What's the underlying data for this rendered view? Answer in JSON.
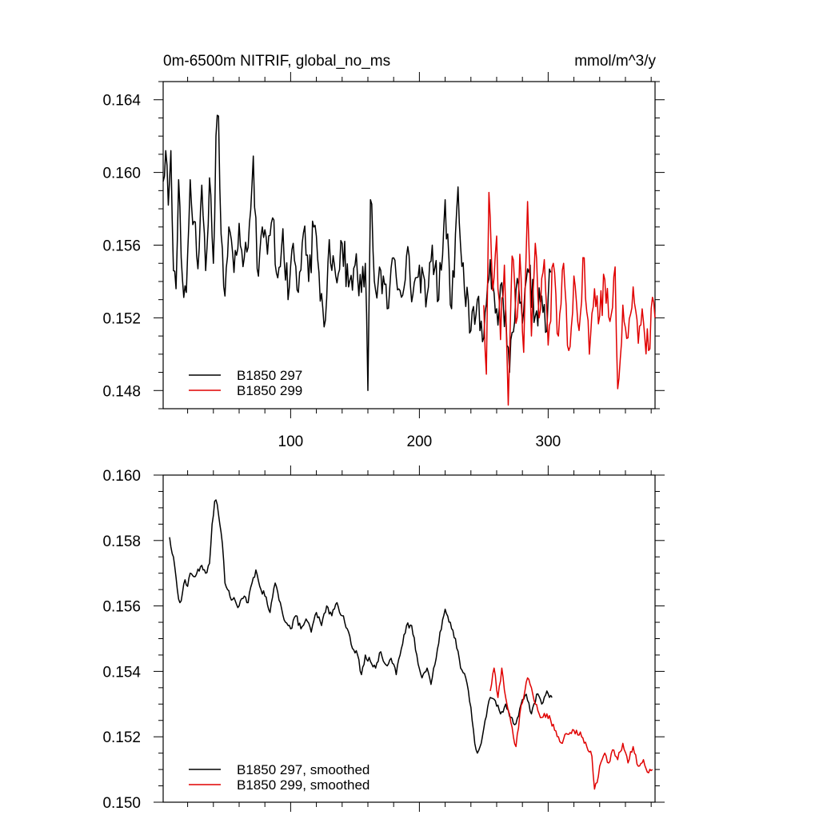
{
  "figure": {
    "title_left": "0m-6500m NITRIF, global_no_ms",
    "title_right": "mmol/m^3/y"
  },
  "colors": {
    "series_297": "#000000",
    "series_299": "#e00000",
    "axis": "#000000",
    "background": "#ffffff"
  },
  "chart_data": [
    {
      "type": "line",
      "panel": "top",
      "title": "0m-6500m NITRIF, global_no_ms",
      "units": "mmol/m^3/y",
      "xlim": [
        1,
        383
      ],
      "ylim": [
        0.147,
        0.165
      ],
      "x_ticks": [
        100,
        200,
        300
      ],
      "x_tick_labels": [
        "100",
        "200",
        "300"
      ],
      "y_ticks": [
        0.148,
        0.152,
        0.156,
        0.16,
        0.164
      ],
      "y_tick_labels": [
        "0.148",
        "0.152",
        "0.156",
        "0.160",
        "0.164"
      ],
      "legend_position": "bottom-left",
      "series": [
        {
          "name": "B1850 297",
          "color": "#000000",
          "x_start": 1,
          "x_step": 1,
          "anchors": [
            [
              1,
              0.1595
            ],
            [
              3,
              0.1612
            ],
            [
              5,
              0.1582
            ],
            [
              7,
              0.1612
            ],
            [
              9,
              0.1546
            ],
            [
              11,
              0.1536
            ],
            [
              13,
              0.1596
            ],
            [
              16,
              0.1541
            ],
            [
              19,
              0.1534
            ],
            [
              22,
              0.1596
            ],
            [
              25,
              0.1573
            ],
            [
              28,
              0.1547
            ],
            [
              31,
              0.1593
            ],
            [
              34,
              0.1546
            ],
            [
              37,
              0.1597
            ],
            [
              40,
              0.155
            ],
            [
              42,
              0.162
            ],
            [
              44,
              0.1631
            ],
            [
              46,
              0.1566
            ],
            [
              49,
              0.1532
            ],
            [
              52,
              0.157
            ],
            [
              56,
              0.1545
            ],
            [
              60,
              0.1572
            ],
            [
              64,
              0.1553
            ],
            [
              68,
              0.1572
            ],
            [
              71,
              0.1609
            ],
            [
              74,
              0.1547
            ],
            [
              78,
              0.157
            ],
            [
              82,
              0.1555
            ],
            [
              86,
              0.1575
            ],
            [
              90,
              0.1542
            ],
            [
              94,
              0.1569
            ],
            [
              98,
              0.153
            ],
            [
              102,
              0.1561
            ],
            [
              106,
              0.1534
            ],
            [
              110,
              0.1567
            ],
            [
              114,
              0.154
            ],
            [
              118,
              0.157
            ],
            [
              122,
              0.1545
            ],
            [
              126,
              0.1515
            ],
            [
              130,
              0.1563
            ],
            [
              135,
              0.1543
            ],
            [
              140,
              0.1561
            ],
            [
              145,
              0.1537
            ],
            [
              150,
              0.1549
            ],
            [
              155,
              0.1534
            ],
            [
              158,
              0.155
            ],
            [
              160,
              0.148
            ],
            [
              162,
              0.1585
            ],
            [
              166,
              0.1535
            ],
            [
              170,
              0.1546
            ],
            [
              175,
              0.1525
            ],
            [
              180,
              0.1553
            ],
            [
              185,
              0.1535
            ],
            [
              190,
              0.1554
            ],
            [
              195,
              0.1533
            ],
            [
              200,
              0.1549
            ],
            [
              205,
              0.1526
            ],
            [
              210,
              0.156
            ],
            [
              215,
              0.153
            ],
            [
              220,
              0.1585
            ],
            [
              225,
              0.1525
            ],
            [
              230,
              0.1592
            ],
            [
              235,
              0.1535
            ],
            [
              240,
              0.1513
            ],
            [
              245,
              0.153
            ],
            [
              250,
              0.1509
            ],
            [
              255,
              0.1552
            ],
            [
              260,
              0.1525
            ],
            [
              265,
              0.153
            ],
            [
              270,
              0.149
            ],
            [
              275,
              0.1535
            ],
            [
              280,
              0.1517
            ],
            [
              285,
              0.1545
            ],
            [
              290,
              0.1521
            ],
            [
              295,
              0.1532
            ],
            [
              298,
              0.1512
            ],
            [
              302,
              0.1545
            ]
          ]
        },
        {
          "name": "B1850 299",
          "color": "#e00000",
          "x_start": 250,
          "x_step": 1,
          "anchors": [
            [
              250,
              0.1527
            ],
            [
              252,
              0.1489
            ],
            [
              254,
              0.1589
            ],
            [
              257,
              0.1535
            ],
            [
              260,
              0.1565
            ],
            [
              263,
              0.1508
            ],
            [
              266,
              0.1549
            ],
            [
              269,
              0.1472
            ],
            [
              272,
              0.1554
            ],
            [
              275,
              0.1517
            ],
            [
              278,
              0.1555
            ],
            [
              281,
              0.1501
            ],
            [
              284,
              0.1584
            ],
            [
              287,
              0.151
            ],
            [
              290,
              0.1561
            ],
            [
              293,
              0.152
            ],
            [
              297,
              0.1552
            ],
            [
              300,
              0.1505
            ],
            [
              304,
              0.155
            ],
            [
              308,
              0.151
            ],
            [
              312,
              0.155
            ],
            [
              316,
              0.1502
            ],
            [
              320,
              0.1543
            ],
            [
              324,
              0.1513
            ],
            [
              328,
              0.1553
            ],
            [
              332,
              0.15
            ],
            [
              336,
              0.1536
            ],
            [
              340,
              0.1521
            ],
            [
              344,
              0.1541
            ],
            [
              348,
              0.1518
            ],
            [
              352,
              0.1548
            ],
            [
              354,
              0.1481
            ],
            [
              358,
              0.1527
            ],
            [
              362,
              0.1509
            ],
            [
              366,
              0.1537
            ],
            [
              370,
              0.1506
            ],
            [
              374,
              0.1518
            ],
            [
              378,
              0.1502
            ],
            [
              380,
              0.1525
            ],
            [
              383,
              0.152
            ]
          ]
        }
      ]
    },
    {
      "type": "line",
      "panel": "bottom",
      "xlim": [
        1,
        383
      ],
      "ylim": [
        0.15,
        0.16
      ],
      "y_ticks": [
        0.15,
        0.152,
        0.154,
        0.156,
        0.158,
        0.16
      ],
      "y_tick_labels": [
        "0.150",
        "0.152",
        "0.154",
        "0.156",
        "0.158",
        "0.160"
      ],
      "legend_position": "bottom-left",
      "series": [
        {
          "name": "B1850 297, smoothed",
          "color": "#000000",
          "x_start": 6,
          "x_step": 1,
          "anchors": [
            [
              6,
              0.1581
            ],
            [
              8,
              0.1576
            ],
            [
              10,
              0.1572
            ],
            [
              12,
              0.1565
            ],
            [
              14,
              0.1561
            ],
            [
              16,
              0.1564
            ],
            [
              18,
              0.1568
            ],
            [
              20,
              0.1566
            ],
            [
              22,
              0.157
            ],
            [
              26,
              0.1569
            ],
            [
              30,
              0.1572
            ],
            [
              34,
              0.157
            ],
            [
              37,
              0.1573
            ],
            [
              39,
              0.1585
            ],
            [
              41,
              0.1592
            ],
            [
              43,
              0.1591
            ],
            [
              45,
              0.1585
            ],
            [
              47,
              0.1579
            ],
            [
              49,
              0.1567
            ],
            [
              51,
              0.1565
            ],
            [
              55,
              0.1562
            ],
            [
              60,
              0.156
            ],
            [
              64,
              0.1563
            ],
            [
              67,
              0.1561
            ],
            [
              70,
              0.1567
            ],
            [
              73,
              0.1571
            ],
            [
              76,
              0.1566
            ],
            [
              80,
              0.1563
            ],
            [
              84,
              0.1558
            ],
            [
              88,
              0.1567
            ],
            [
              92,
              0.1561
            ],
            [
              96,
              0.1555
            ],
            [
              100,
              0.1553
            ],
            [
              104,
              0.1557
            ],
            [
              108,
              0.1553
            ],
            [
              112,
              0.1556
            ],
            [
              116,
              0.1552
            ],
            [
              120,
              0.1558
            ],
            [
              124,
              0.1554
            ],
            [
              128,
              0.156
            ],
            [
              132,
              0.1557
            ],
            [
              136,
              0.1561
            ],
            [
              140,
              0.1557
            ],
            [
              144,
              0.1553
            ],
            [
              148,
              0.1547
            ],
            [
              152,
              0.1545
            ],
            [
              155,
              0.1539
            ],
            [
              158,
              0.1545
            ],
            [
              162,
              0.1543
            ],
            [
              166,
              0.1541
            ],
            [
              170,
              0.1546
            ],
            [
              174,
              0.1542
            ],
            [
              178,
              0.1544
            ],
            [
              182,
              0.1539
            ],
            [
              186,
              0.1547
            ],
            [
              190,
              0.1554
            ],
            [
              194,
              0.1554
            ],
            [
              198,
              0.1545
            ],
            [
              202,
              0.1538
            ],
            [
              206,
              0.1541
            ],
            [
              209,
              0.1536
            ],
            [
              212,
              0.1542
            ],
            [
              216,
              0.1552
            ],
            [
              220,
              0.1559
            ],
            [
              224,
              0.1555
            ],
            [
              228,
              0.155
            ],
            [
              232,
              0.1541
            ],
            [
              236,
              0.1538
            ],
            [
              240,
              0.1529
            ],
            [
              243,
              0.1518
            ],
            [
              245,
              0.1515
            ],
            [
              248,
              0.1518
            ],
            [
              251,
              0.1525
            ],
            [
              255,
              0.1532
            ],
            [
              259,
              0.1531
            ],
            [
              263,
              0.1527
            ],
            [
              267,
              0.153
            ],
            [
              271,
              0.1526
            ],
            [
              275,
              0.1524
            ],
            [
              279,
              0.153
            ],
            [
              283,
              0.1533
            ],
            [
              287,
              0.1527
            ],
            [
              291,
              0.1533
            ],
            [
              295,
              0.153
            ],
            [
              299,
              0.1534
            ],
            [
              303,
              0.1532
            ]
          ]
        },
        {
          "name": "B1850 299, smoothed",
          "color": "#e00000",
          "x_start": 255,
          "x_step": 1,
          "anchors": [
            [
              255,
              0.1534
            ],
            [
              258,
              0.1541
            ],
            [
              261,
              0.1532
            ],
            [
              264,
              0.1541
            ],
            [
              267,
              0.1532
            ],
            [
              270,
              0.1527
            ],
            [
              273,
              0.152
            ],
            [
              275,
              0.1517
            ],
            [
              278,
              0.1527
            ],
            [
              281,
              0.1532
            ],
            [
              284,
              0.1538
            ],
            [
              287,
              0.1535
            ],
            [
              290,
              0.153
            ],
            [
              293,
              0.1527
            ],
            [
              296,
              0.1526
            ],
            [
              299,
              0.1527
            ],
            [
              302,
              0.1525
            ],
            [
              305,
              0.1522
            ],
            [
              308,
              0.152
            ],
            [
              311,
              0.1518
            ],
            [
              314,
              0.1521
            ],
            [
              318,
              0.1521
            ],
            [
              322,
              0.1522
            ],
            [
              326,
              0.152
            ],
            [
              330,
              0.1517
            ],
            [
              334,
              0.1514
            ],
            [
              336,
              0.1504
            ],
            [
              338,
              0.1506
            ],
            [
              340,
              0.1511
            ],
            [
              344,
              0.1515
            ],
            [
              347,
              0.1512
            ],
            [
              350,
              0.1516
            ],
            [
              354,
              0.1513
            ],
            [
              358,
              0.1518
            ],
            [
              362,
              0.1512
            ],
            [
              366,
              0.1517
            ],
            [
              370,
              0.1511
            ],
            [
              374,
              0.1513
            ],
            [
              378,
              0.1509
            ],
            [
              381,
              0.151
            ]
          ]
        }
      ]
    }
  ]
}
